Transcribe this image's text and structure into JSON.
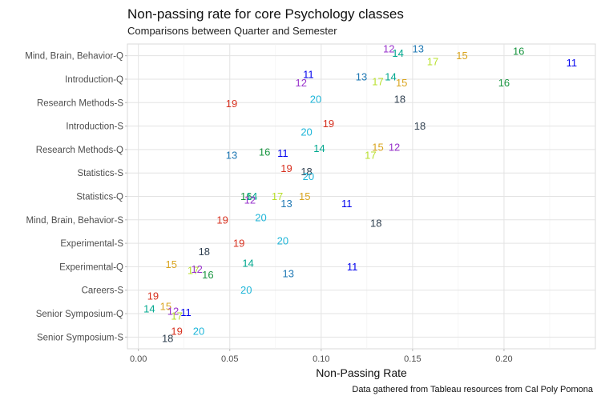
{
  "chart_data": {
    "type": "scatter",
    "title": "Non-passing rate for core Psychology classes",
    "subtitle": "Comparisons between Quarter and Semester",
    "xlabel": "Non-Passing Rate",
    "ylabel": "",
    "caption": "Data gathered from Tableau resources from Cal Poly Pomona",
    "xlim": [
      -0.006,
      0.25
    ],
    "x_ticks": [
      0.0,
      0.05,
      0.1,
      0.15,
      0.2
    ],
    "x_tick_labels": [
      "0.00",
      "0.05",
      "0.10",
      "0.15",
      "0.20"
    ],
    "grid": true,
    "legend": "none",
    "categories": [
      "Mind, Brain, Behavior-Q",
      "Introduction-Q",
      "Research Methods-S",
      "Introduction-S",
      "Research Methods-Q",
      "Statistics-S",
      "Statistics-Q",
      "Mind, Brain, Behavior-S",
      "Experimental-S",
      "Experimental-Q",
      "Careers-S",
      "Senior Symposium-Q",
      "Senior Symposium-S"
    ],
    "label_colors": {
      "11": "#0000ee",
      "12": "#9933cc",
      "13": "#1f78b4",
      "14": "#00a88f",
      "15": "#daa520",
      "16": "#1a9641",
      "17": "#b8e02c",
      "18": "#2f3f4f",
      "19": "#d7301f",
      "20": "#1fb6d9"
    },
    "points": [
      {
        "label": "12",
        "category": "Mind, Brain, Behavior-Q",
        "x": 0.137,
        "dy": -0.3
      },
      {
        "label": "14",
        "category": "Mind, Brain, Behavior-Q",
        "x": 0.142,
        "dy": -0.1
      },
      {
        "label": "13",
        "category": "Mind, Brain, Behavior-Q",
        "x": 0.153,
        "dy": -0.3
      },
      {
        "label": "17",
        "category": "Mind, Brain, Behavior-Q",
        "x": 0.161,
        "dy": 0.25
      },
      {
        "label": "15",
        "category": "Mind, Brain, Behavior-Q",
        "x": 0.177,
        "dy": 0
      },
      {
        "label": "16",
        "category": "Mind, Brain, Behavior-Q",
        "x": 0.208,
        "dy": -0.2
      },
      {
        "label": "11",
        "category": "Mind, Brain, Behavior-Q",
        "x": 0.237,
        "dy": 0.3
      },
      {
        "label": "11",
        "category": "Introduction-Q",
        "x": 0.093,
        "dy": -0.2
      },
      {
        "label": "12",
        "category": "Introduction-Q",
        "x": 0.089,
        "dy": 0.15
      },
      {
        "label": "13",
        "category": "Introduction-Q",
        "x": 0.122,
        "dy": -0.1
      },
      {
        "label": "14",
        "category": "Introduction-Q",
        "x": 0.138,
        "dy": -0.1
      },
      {
        "label": "17",
        "category": "Introduction-Q",
        "x": 0.131,
        "dy": 0.1
      },
      {
        "label": "15",
        "category": "Introduction-Q",
        "x": 0.144,
        "dy": 0.15
      },
      {
        "label": "16",
        "category": "Introduction-Q",
        "x": 0.2,
        "dy": 0.15
      },
      {
        "label": "19",
        "category": "Research Methods-S",
        "x": 0.051,
        "dy": 0.05
      },
      {
        "label": "20",
        "category": "Research Methods-S",
        "x": 0.097,
        "dy": -0.15
      },
      {
        "label": "18",
        "category": "Research Methods-S",
        "x": 0.143,
        "dy": -0.15
      },
      {
        "label": "19",
        "category": "Introduction-S",
        "x": 0.104,
        "dy": -0.1
      },
      {
        "label": "20",
        "category": "Introduction-S",
        "x": 0.092,
        "dy": 0.25
      },
      {
        "label": "18",
        "category": "Introduction-S",
        "x": 0.154,
        "dy": 0
      },
      {
        "label": "13",
        "category": "Research Methods-Q",
        "x": 0.051,
        "dy": 0.25
      },
      {
        "label": "16",
        "category": "Research Methods-Q",
        "x": 0.069,
        "dy": 0.1
      },
      {
        "label": "11",
        "category": "Research Methods-Q",
        "x": 0.079,
        "dy": 0.15
      },
      {
        "label": "14",
        "category": "Research Methods-Q",
        "x": 0.099,
        "dy": -0.05
      },
      {
        "label": "15",
        "category": "Research Methods-Q",
        "x": 0.131,
        "dy": -0.1
      },
      {
        "label": "12",
        "category": "Research Methods-Q",
        "x": 0.14,
        "dy": -0.1
      },
      {
        "label": "17",
        "category": "Research Methods-Q",
        "x": 0.127,
        "dy": 0.25
      },
      {
        "label": "19",
        "category": "Statistics-S",
        "x": 0.081,
        "dy": -0.2
      },
      {
        "label": "18",
        "category": "Statistics-S",
        "x": 0.092,
        "dy": -0.05
      },
      {
        "label": "20",
        "category": "Statistics-S",
        "x": 0.093,
        "dy": 0.15
      },
      {
        "label": "16",
        "category": "Statistics-Q",
        "x": 0.059,
        "dy": 0
      },
      {
        "label": "14",
        "category": "Statistics-Q",
        "x": 0.062,
        "dy": 0
      },
      {
        "label": "12",
        "category": "Statistics-Q",
        "x": 0.061,
        "dy": 0.15
      },
      {
        "label": "17",
        "category": "Statistics-Q",
        "x": 0.076,
        "dy": 0
      },
      {
        "label": "13",
        "category": "Statistics-Q",
        "x": 0.081,
        "dy": 0.3
      },
      {
        "label": "15",
        "category": "Statistics-Q",
        "x": 0.091,
        "dy": 0
      },
      {
        "label": "11",
        "category": "Statistics-Q",
        "x": 0.114,
        "dy": 0.3
      },
      {
        "label": "19",
        "category": "Mind, Brain, Behavior-S",
        "x": 0.046,
        "dy": 0
      },
      {
        "label": "20",
        "category": "Mind, Brain, Behavior-S",
        "x": 0.067,
        "dy": -0.1
      },
      {
        "label": "18",
        "category": "Mind, Brain, Behavior-S",
        "x": 0.13,
        "dy": 0.15
      },
      {
        "label": "19",
        "category": "Experimental-S",
        "x": 0.055,
        "dy": 0
      },
      {
        "label": "18",
        "category": "Experimental-S",
        "x": 0.036,
        "dy": 0.35
      },
      {
        "label": "20",
        "category": "Experimental-S",
        "x": 0.079,
        "dy": -0.1
      },
      {
        "label": "15",
        "category": "Experimental-Q",
        "x": 0.018,
        "dy": -0.1
      },
      {
        "label": "17",
        "category": "Experimental-Q",
        "x": 0.03,
        "dy": 0.15
      },
      {
        "label": "12",
        "category": "Experimental-Q",
        "x": 0.032,
        "dy": 0.1
      },
      {
        "label": "16",
        "category": "Experimental-Q",
        "x": 0.038,
        "dy": 0.35
      },
      {
        "label": "14",
        "category": "Experimental-Q",
        "x": 0.06,
        "dy": -0.15
      },
      {
        "label": "11",
        "category": "Experimental-Q",
        "x": 0.117,
        "dy": 0
      },
      {
        "label": "13",
        "category": "Experimental-Q",
        "x": 0.082,
        "dy": 0.3
      },
      {
        "label": "19",
        "category": "Careers-S",
        "x": 0.008,
        "dy": 0.25
      },
      {
        "label": "20",
        "category": "Careers-S",
        "x": 0.059,
        "dy": 0
      },
      {
        "label": "14",
        "category": "Senior Symposium-Q",
        "x": 0.006,
        "dy": -0.2
      },
      {
        "label": "15",
        "category": "Senior Symposium-Q",
        "x": 0.015,
        "dy": -0.3
      },
      {
        "label": "12",
        "category": "Senior Symposium-Q",
        "x": 0.019,
        "dy": -0.1
      },
      {
        "label": "17",
        "category": "Senior Symposium-Q",
        "x": 0.021,
        "dy": 0.1
      },
      {
        "label": "11",
        "category": "Senior Symposium-Q",
        "x": 0.026,
        "dy": -0.05
      },
      {
        "label": "19",
        "category": "Senior Symposium-S",
        "x": 0.021,
        "dy": -0.25
      },
      {
        "label": "20",
        "category": "Senior Symposium-S",
        "x": 0.033,
        "dy": -0.25
      },
      {
        "label": "18",
        "category": "Senior Symposium-S",
        "x": 0.016,
        "dy": 0.05
      }
    ]
  }
}
